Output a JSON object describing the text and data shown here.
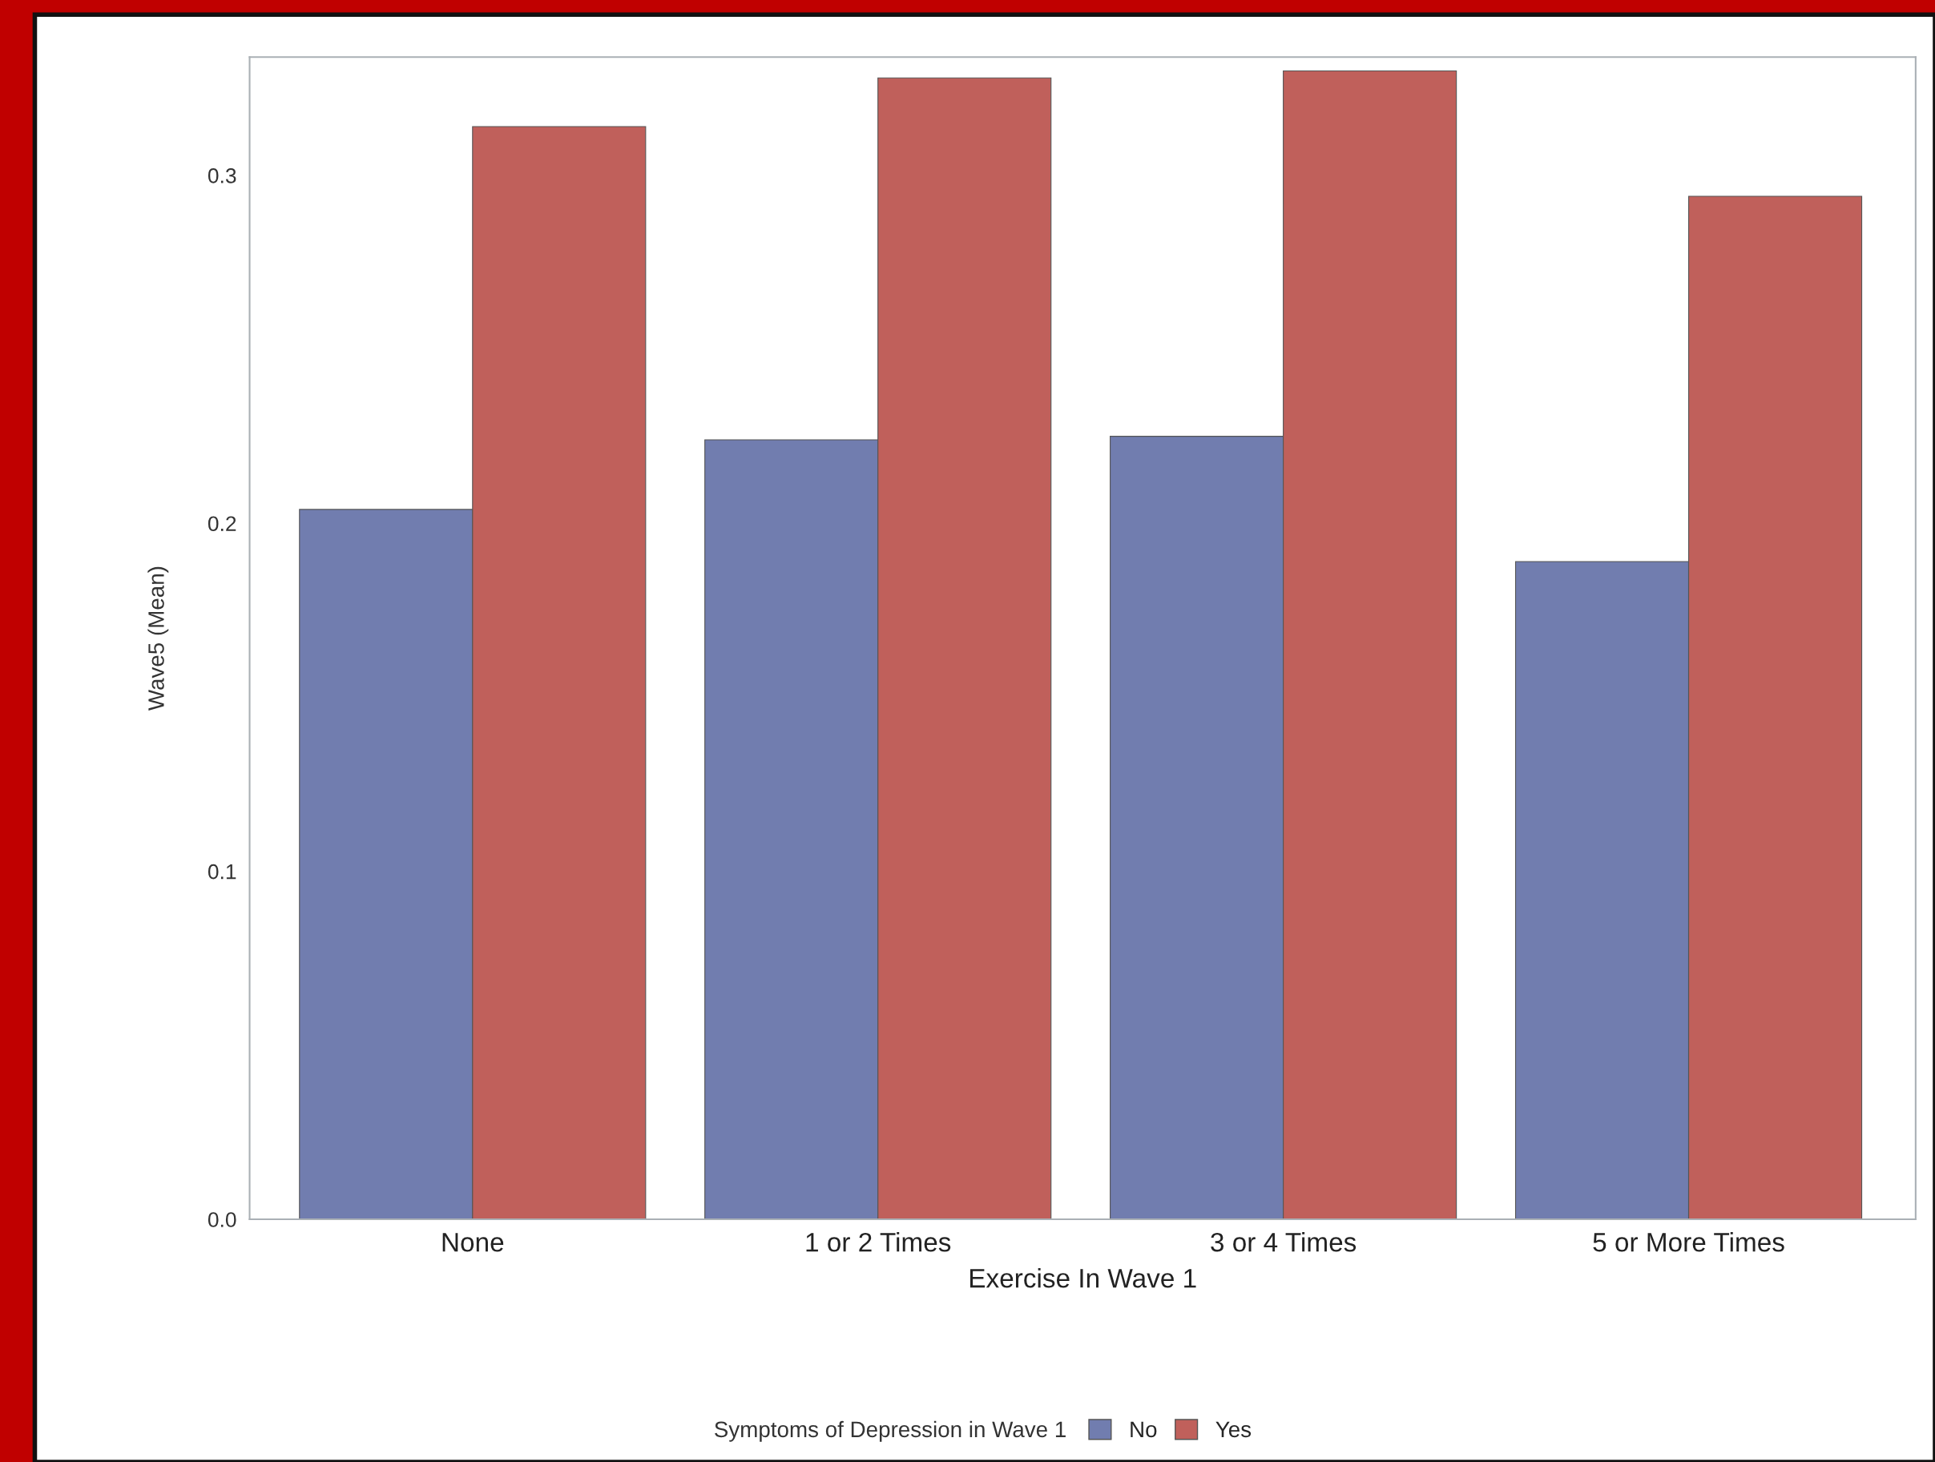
{
  "chart_data": {
    "type": "bar",
    "xlabel": "Exercise In Wave 1",
    "ylabel": "Wave5 (Mean)",
    "legend_title": "Symptoms of Depression in Wave 1",
    "categories": [
      "None",
      "1 or 2 Times",
      "3 or 4 Times",
      "5 or More Times"
    ],
    "series": [
      {
        "name": "No",
        "color": "#717daf",
        "values": [
          0.204,
          0.224,
          0.225,
          0.189
        ]
      },
      {
        "name": "Yes",
        "color": "#c0605b",
        "values": [
          0.314,
          0.328,
          0.33,
          0.294
        ]
      }
    ],
    "ylim": [
      0,
      0.334
    ],
    "yticks": [
      {
        "value": 0,
        "label": "0.0"
      },
      0.1,
      0.2,
      0.3
    ],
    "grid": false,
    "legend": "bottom"
  }
}
